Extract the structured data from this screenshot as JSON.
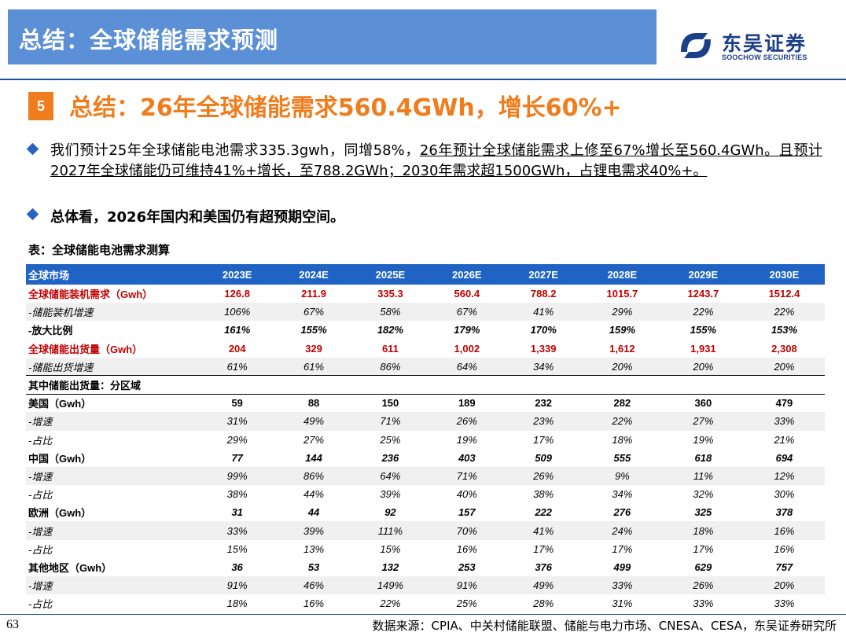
{
  "header": {
    "title": "总结：全球储能需求预测",
    "logo_name": "东吴证券",
    "logo_sub": "SOOCHOW SECURITIES"
  },
  "section": {
    "number": "5",
    "headline": "总结：26年全球储能需求560.4GWh，增长60%+"
  },
  "bullets": {
    "b1_part1": "我们预计25年全球储能电池需求335.3gwh，同增58%，",
    "b1_part2": "26年预计全球储能需求上修至67%增长至560.4GWh。且预计2027年全球储能仍可维持41%+增长，至788.2GWh；2030年需求超1500GWh，占锂电需求40%+。",
    "b2": "总体看，2026年国内和美国仍有超预期空间。"
  },
  "table": {
    "caption": "表：全球储能电池需求测算",
    "header": [
      "全球市场",
      "2023E",
      "2024E",
      "2025E",
      "2026E",
      "2027E",
      "2028E",
      "2029E",
      "2030E"
    ],
    "rows": [
      [
        "全球储能装机需求（Gwh）",
        "126.8",
        "211.9",
        "335.3",
        "560.4",
        "788.2",
        "1015.7",
        "1243.7",
        "1512.4"
      ],
      [
        "-储能装机增速",
        "106%",
        "67%",
        "58%",
        "67%",
        "41%",
        "29%",
        "22%",
        "22%"
      ],
      [
        "-放大比例",
        "161%",
        "155%",
        "182%",
        "179%",
        "170%",
        "159%",
        "155%",
        "153%"
      ],
      [
        "全球储能出货量（Gwh）",
        "204",
        "329",
        "611",
        "1,002",
        "1,339",
        "1,612",
        "1,931",
        "2,308"
      ],
      [
        "-储能出货增速",
        "61%",
        "61%",
        "86%",
        "64%",
        "34%",
        "20%",
        "20%",
        "20%"
      ],
      [
        "其中储能出货量：分区域",
        "",
        "",
        "",
        "",
        "",
        "",
        "",
        ""
      ],
      [
        "美国（Gwh）",
        "59",
        "88",
        "150",
        "189",
        "232",
        "282",
        "360",
        "479"
      ],
      [
        "-增速",
        "31%",
        "49%",
        "71%",
        "26%",
        "23%",
        "22%",
        "27%",
        "33%"
      ],
      [
        "-占比",
        "29%",
        "27%",
        "25%",
        "19%",
        "17%",
        "18%",
        "19%",
        "21%"
      ],
      [
        "中国（Gwh）",
        "77",
        "144",
        "236",
        "403",
        "509",
        "555",
        "618",
        "694"
      ],
      [
        "-增速",
        "99%",
        "86%",
        "64%",
        "71%",
        "26%",
        "9%",
        "11%",
        "12%"
      ],
      [
        "-占比",
        "38%",
        "44%",
        "39%",
        "40%",
        "38%",
        "34%",
        "32%",
        "30%"
      ],
      [
        "欧洲（Gwh）",
        "31",
        "44",
        "92",
        "157",
        "222",
        "276",
        "325",
        "378"
      ],
      [
        "-增速",
        "33%",
        "39%",
        "111%",
        "70%",
        "41%",
        "24%",
        "18%",
        "16%"
      ],
      [
        "-占比",
        "15%",
        "13%",
        "15%",
        "16%",
        "17%",
        "17%",
        "17%",
        "16%"
      ],
      [
        "其他地区（Gwh）",
        "36",
        "53",
        "132",
        "253",
        "376",
        "499",
        "629",
        "757"
      ],
      [
        "-增速",
        "91%",
        "46%",
        "149%",
        "91%",
        "49%",
        "33%",
        "26%",
        "20%"
      ],
      [
        "-占比",
        "18%",
        "16%",
        "22%",
        "25%",
        "28%",
        "31%",
        "33%",
        "33%"
      ]
    ]
  },
  "footer": {
    "page": "63",
    "source": "数据来源：CPIA、中关村储能联盟、储能与电力市场、CNESA、CESA，东吴证券研究所"
  },
  "colors": {
    "title_bar": "#5b8fd6",
    "accent_orange": "#f07d1d",
    "table_header": "#1f64c4",
    "highlight_red": "#c00000",
    "brand_blue": "#1c3f8a"
  }
}
